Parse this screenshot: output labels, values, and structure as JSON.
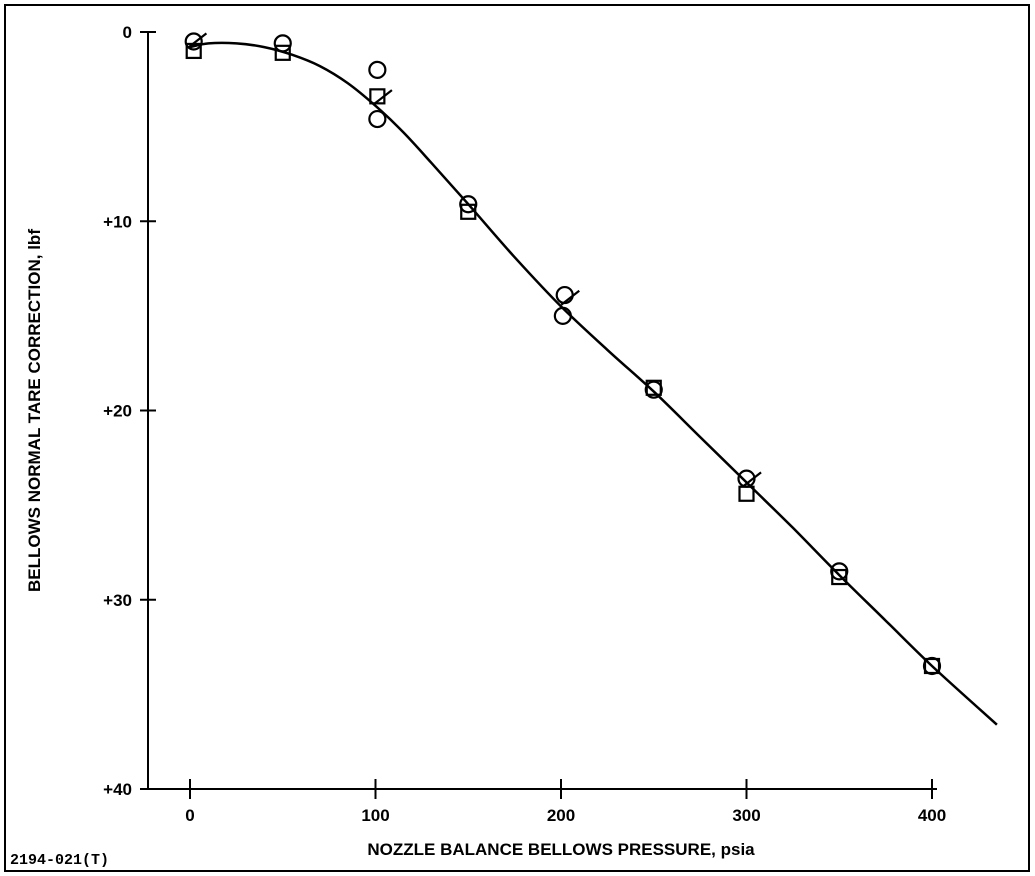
{
  "figure_id": "2194-021(T)",
  "chart_data": {
    "type": "scatter",
    "title": "",
    "xlabel": "NOZZLE BALANCE BELLOWS PRESSURE, psia",
    "ylabel": "BELLOWS NORMAL TARE CORRECTION, lbf",
    "xlim": [
      0,
      400
    ],
    "ylim": [
      0,
      40
    ],
    "y_axis_inverted": true,
    "grid": false,
    "legend": "none",
    "x_ticks": [
      {
        "value": 0,
        "label": "0"
      },
      {
        "value": 100,
        "label": "100"
      },
      {
        "value": 200,
        "label": "200"
      },
      {
        "value": 300,
        "label": "300"
      },
      {
        "value": 400,
        "label": "400"
      }
    ],
    "y_ticks": [
      {
        "value": 0,
        "label": "0"
      },
      {
        "value": 10,
        "label": "+10"
      },
      {
        "value": 20,
        "label": "+20"
      },
      {
        "value": 30,
        "label": "+30"
      },
      {
        "value": 40,
        "label": "+40"
      }
    ],
    "series": [
      {
        "marker": "circle",
        "points": [
          [
            2,
            0.5
          ],
          [
            50,
            0.6
          ],
          [
            101,
            2.0
          ],
          [
            101,
            4.6
          ],
          [
            150,
            9.1
          ],
          [
            202,
            13.9
          ],
          [
            201,
            15.0
          ],
          [
            250,
            18.9
          ],
          [
            300,
            23.6
          ],
          [
            350,
            28.5
          ],
          [
            400,
            33.5
          ]
        ]
      },
      {
        "marker": "square",
        "points": [
          [
            2,
            1.0
          ],
          [
            50,
            1.1
          ],
          [
            101,
            3.4
          ],
          [
            150,
            9.5
          ],
          [
            250,
            18.8
          ],
          [
            300,
            24.4
          ],
          [
            350,
            28.8
          ],
          [
            400,
            33.5
          ]
        ]
      },
      {
        "marker": "flag",
        "points": [
          [
            4,
            0.6
          ],
          [
            104,
            3.6
          ],
          [
            205,
            14.2
          ],
          [
            303,
            23.8
          ]
        ]
      }
    ],
    "fit_curve": [
      [
        0,
        0.8
      ],
      [
        10,
        0.6
      ],
      [
        25,
        0.6
      ],
      [
        40,
        0.8
      ],
      [
        55,
        1.2
      ],
      [
        70,
        1.8
      ],
      [
        85,
        2.7
      ],
      [
        100,
        3.9
      ],
      [
        115,
        5.3
      ],
      [
        130,
        6.9
      ],
      [
        150,
        9.1
      ],
      [
        175,
        11.9
      ],
      [
        200,
        14.5
      ],
      [
        225,
        16.8
      ],
      [
        250,
        19.0
      ],
      [
        275,
        21.4
      ],
      [
        300,
        23.8
      ],
      [
        325,
        26.2
      ],
      [
        350,
        28.7
      ],
      [
        375,
        31.1
      ],
      [
        400,
        33.5
      ],
      [
        435,
        36.6
      ]
    ]
  }
}
